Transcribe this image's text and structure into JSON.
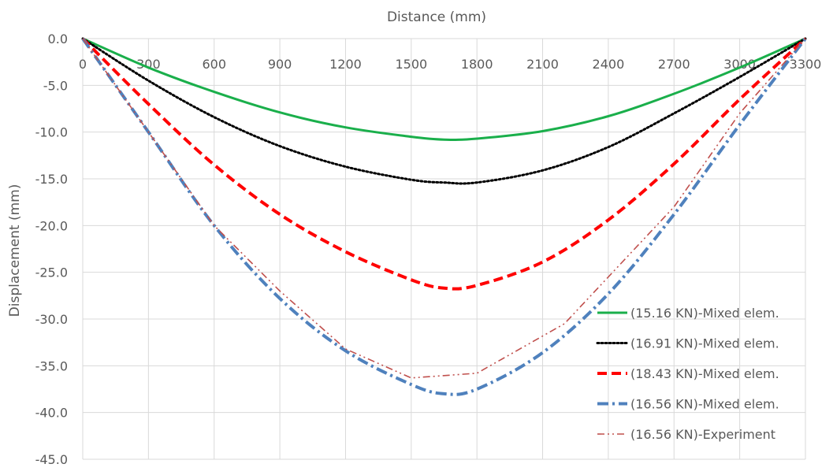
{
  "chart_data": {
    "type": "line",
    "xlabel": "Distance (mm)",
    "ylabel": "Displacement (mm)",
    "xlim": [
      0,
      3300
    ],
    "ylim": [
      -45,
      0
    ],
    "xticks": [
      0,
      300,
      600,
      900,
      1200,
      1500,
      1800,
      2100,
      2400,
      2700,
      3000,
      3300
    ],
    "xtick_labels": [
      "0",
      "300",
      "600",
      "900",
      "1200",
      "1500",
      "1800",
      "2100",
      "2400",
      "2700",
      "3000",
      "3300"
    ],
    "yticks": [
      0,
      -5,
      -10,
      -15,
      -20,
      -25,
      -30,
      -35,
      -40,
      -45
    ],
    "ytick_labels": [
      "0.0",
      "-5.0",
      "-10.0",
      "-15.0",
      "-20.0",
      "-25.0",
      "-30.0",
      "-35.0",
      "-40.0",
      "-45.0"
    ],
    "x_axis_position": "top",
    "grid": {
      "horizontal": true,
      "vertical": true
    },
    "legend_position": "bottom-right",
    "series": [
      {
        "name": "(15.16 KN)-Mixed elem.",
        "color": "#1aaf4b",
        "style": "solid",
        "x": [
          0,
          300,
          600,
          900,
          1200,
          1500,
          1650,
          1800,
          2100,
          2400,
          2700,
          3000,
          3300
        ],
        "y": [
          0,
          -3.1,
          -5.7,
          -7.9,
          -9.5,
          -10.5,
          -10.8,
          -10.7,
          -9.9,
          -8.3,
          -5.9,
          -3.1,
          0
        ]
      },
      {
        "name": "(16.91 KN)-Mixed elem.",
        "color": "#000000",
        "style": "dotted",
        "x": [
          0,
          300,
          600,
          900,
          1200,
          1500,
          1650,
          1800,
          2100,
          2400,
          2700,
          3000,
          3300
        ],
        "y": [
          0,
          -4.5,
          -8.4,
          -11.5,
          -13.7,
          -15.1,
          -15.4,
          -15.4,
          -14.1,
          -11.6,
          -8.0,
          -4.1,
          0
        ]
      },
      {
        "name": "(18.43 KN)-Mixed elem.",
        "color": "#ff0000",
        "style": "dashed",
        "x": [
          0,
          300,
          600,
          900,
          1200,
          1500,
          1650,
          1800,
          2100,
          2400,
          2700,
          3000,
          3300
        ],
        "y": [
          0,
          -7.0,
          -13.5,
          -18.8,
          -22.8,
          -25.8,
          -26.7,
          -26.4,
          -23.9,
          -19.4,
          -13.4,
          -6.5,
          0
        ]
      },
      {
        "name": "(16.56 KN)-Mixed elem.",
        "color": "#4f81bd",
        "style": "dashdot",
        "x": [
          0,
          300,
          600,
          900,
          1200,
          1500,
          1650,
          1800,
          2100,
          2400,
          2700,
          3000,
          3300
        ],
        "y": [
          0,
          -10.0,
          -20.0,
          -27.8,
          -33.4,
          -37.0,
          -38.0,
          -37.5,
          -33.6,
          -27.3,
          -18.8,
          -9.2,
          0
        ]
      },
      {
        "name": "(16.56 KN)-Experiment",
        "color": "#c0504d",
        "style": "dashdotdot",
        "x": [
          0,
          300,
          600,
          900,
          1200,
          1500,
          1800,
          2200,
          2700,
          3000,
          3300
        ],
        "y": [
          0,
          -10.0,
          -20.0,
          -27.0,
          -33.2,
          -36.3,
          -35.8,
          -30.5,
          -18.0,
          -8.0,
          0
        ]
      }
    ]
  }
}
